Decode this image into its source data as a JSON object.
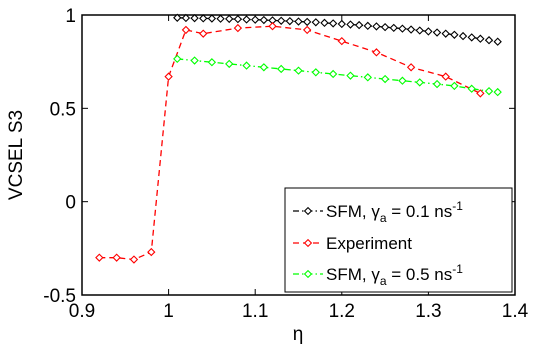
{
  "chart_data": {
    "type": "line",
    "title": "",
    "xlabel": "η",
    "ylabel": "VCSEL S3",
    "xlim": [
      0.9,
      1.4
    ],
    "ylim": [
      -0.5,
      1
    ],
    "xticks": [
      0.9,
      1.0,
      1.1,
      1.2,
      1.3,
      1.4
    ],
    "xtick_labels": [
      "0.9",
      "1",
      "1.1",
      "1.2",
      "1.3",
      "1.4"
    ],
    "yticks": [
      -0.5,
      0,
      0.5,
      1
    ],
    "ytick_labels": [
      "-0.5",
      "0",
      "0.5",
      "1"
    ],
    "grid": false,
    "legend_position": "bottom-right",
    "series": [
      {
        "legend": {
          "prefix": "SFM, ",
          "greek": "γ",
          "sub": "a",
          "suffix": " = 0.1 ns",
          "sup": "-1"
        },
        "color": "#000000",
        "line_style": "dash-dot",
        "marker": "diamond",
        "x": [
          1.01,
          1.02,
          1.03,
          1.04,
          1.05,
          1.06,
          1.07,
          1.08,
          1.09,
          1.1,
          1.11,
          1.12,
          1.13,
          1.14,
          1.15,
          1.16,
          1.17,
          1.18,
          1.19,
          1.2,
          1.21,
          1.22,
          1.23,
          1.24,
          1.25,
          1.26,
          1.27,
          1.28,
          1.29,
          1.3,
          1.31,
          1.32,
          1.33,
          1.34,
          1.35,
          1.36,
          1.37,
          1.38
        ],
        "y": [
          0.985,
          0.984,
          0.983,
          0.982,
          0.981,
          0.98,
          0.979,
          0.978,
          0.976,
          0.975,
          0.973,
          0.971,
          0.969,
          0.967,
          0.965,
          0.963,
          0.961,
          0.958,
          0.955,
          0.952,
          0.949,
          0.946,
          0.942,
          0.939,
          0.935,
          0.931,
          0.927,
          0.922,
          0.917,
          0.912,
          0.906,
          0.9,
          0.894,
          0.887,
          0.88,
          0.873,
          0.865,
          0.857
        ]
      },
      {
        "legend": {
          "prefix": "Experiment",
          "greek": "",
          "sub": "",
          "suffix": "",
          "sup": ""
        },
        "color": "#ff0000",
        "line_style": "dashed",
        "marker": "diamond",
        "x": [
          0.92,
          0.94,
          0.96,
          0.98,
          1.0,
          1.02,
          1.04,
          1.08,
          1.12,
          1.16,
          1.2,
          1.24,
          1.28,
          1.32,
          1.36
        ],
        "y": [
          -0.3,
          -0.3,
          -0.31,
          -0.27,
          0.67,
          0.92,
          0.9,
          0.93,
          0.94,
          0.92,
          0.86,
          0.8,
          0.72,
          0.67,
          0.58
        ]
      },
      {
        "legend": {
          "prefix": "SFM, ",
          "greek": "γ",
          "sub": "a",
          "suffix": " = 0.5 ns",
          "sup": "-1"
        },
        "color": "#00ff00",
        "line_style": "dash-dot",
        "marker": "diamond",
        "x": [
          1.01,
          1.03,
          1.05,
          1.07,
          1.09,
          1.11,
          1.13,
          1.15,
          1.17,
          1.19,
          1.21,
          1.23,
          1.25,
          1.27,
          1.29,
          1.31,
          1.33,
          1.35,
          1.37,
          1.38
        ],
        "y": [
          0.765,
          0.756,
          0.747,
          0.738,
          0.729,
          0.72,
          0.711,
          0.702,
          0.693,
          0.684,
          0.675,
          0.666,
          0.657,
          0.648,
          0.639,
          0.63,
          0.62,
          0.605,
          0.592,
          0.587
        ]
      }
    ]
  }
}
